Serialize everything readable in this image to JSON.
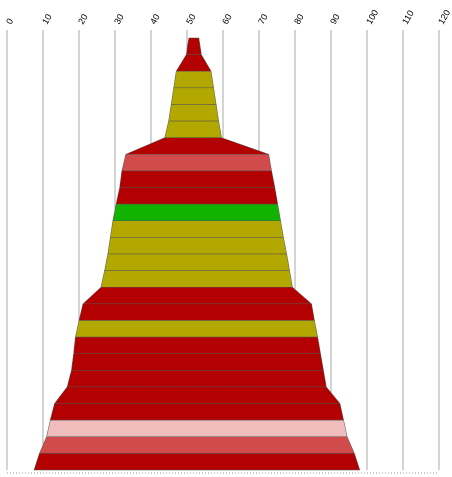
{
  "chart_data": {
    "type": "stacked-area",
    "title": "",
    "xlabel": "",
    "ylabel": "",
    "xlim": [
      0,
      120
    ],
    "tick_values": [
      0,
      10,
      20,
      30,
      40,
      50,
      60,
      70,
      80,
      90,
      100,
      110,
      120
    ],
    "tick_labels": [
      "0",
      "10",
      "20",
      "30",
      "40",
      "50",
      "60",
      "70",
      "80",
      "90",
      "100",
      "110",
      "120"
    ],
    "grid": true,
    "legend": "none",
    "colors": {
      "red": "#b30000",
      "olive": "#b3a800",
      "green": "#11b300",
      "light_red": "#d24b4b",
      "pink": "#f0bcbc"
    },
    "bands": [
      {
        "left": 50.5,
        "right": 53.3,
        "color": "red"
      },
      {
        "left": 49.8,
        "right": 54.0,
        "color": "red"
      },
      {
        "left": 47.0,
        "right": 56.7,
        "color": "olive"
      },
      {
        "left": 46.3,
        "right": 57.4,
        "color": "olive"
      },
      {
        "left": 45.6,
        "right": 58.1,
        "color": "olive"
      },
      {
        "left": 44.9,
        "right": 58.8,
        "color": "olive"
      },
      {
        "left": 43.8,
        "right": 59.6,
        "color": "red"
      },
      {
        "left": 33.0,
        "right": 72.7,
        "color": "light_red"
      },
      {
        "left": 31.9,
        "right": 73.5,
        "color": "red"
      },
      {
        "left": 31.3,
        "right": 74.4,
        "color": "red"
      },
      {
        "left": 30.3,
        "right": 75.2,
        "color": "green"
      },
      {
        "left": 29.4,
        "right": 76.0,
        "color": "olive"
      },
      {
        "left": 28.7,
        "right": 76.8,
        "color": "olive"
      },
      {
        "left": 28.0,
        "right": 77.7,
        "color": "olive"
      },
      {
        "left": 27.1,
        "right": 78.5,
        "color": "olive"
      },
      {
        "left": 26.1,
        "right": 79.3,
        "color": "red"
      },
      {
        "left": 21.1,
        "right": 84.6,
        "color": "red"
      },
      {
        "left": 20.0,
        "right": 85.4,
        "color": "olive"
      },
      {
        "left": 19.0,
        "right": 86.3,
        "color": "red"
      },
      {
        "left": 18.5,
        "right": 87.1,
        "color": "red"
      },
      {
        "left": 17.9,
        "right": 87.9,
        "color": "red"
      },
      {
        "left": 16.7,
        "right": 88.7,
        "color": "red"
      },
      {
        "left": 13.2,
        "right": 92.5,
        "color": "red"
      },
      {
        "left": 12.0,
        "right": 93.5,
        "color": "pink"
      },
      {
        "left": 11.0,
        "right": 94.5,
        "color": "light_red"
      },
      {
        "left": 9.0,
        "right": 96.5,
        "color": "red"
      }
    ]
  }
}
